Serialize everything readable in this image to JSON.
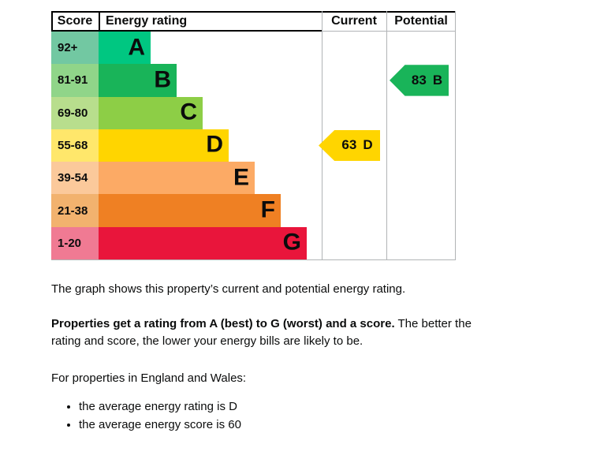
{
  "chart_data": {
    "type": "bar",
    "subtype": "epc-energy-rating-graph",
    "columns": [
      "Score",
      "Energy rating",
      "Current",
      "Potential"
    ],
    "bands": [
      {
        "score_range": "92+",
        "rating": "A",
        "color": "#00c781",
        "score_cell_color": "#72c8a2"
      },
      {
        "score_range": "81-91",
        "rating": "B",
        "color": "#19b459",
        "score_cell_color": "#90d589"
      },
      {
        "score_range": "69-80",
        "rating": "C",
        "color": "#8dce46",
        "score_cell_color": "#b8de8d"
      },
      {
        "score_range": "55-68",
        "rating": "D",
        "color": "#ffd500",
        "score_cell_color": "#ffe76b"
      },
      {
        "score_range": "39-54",
        "rating": "E",
        "color": "#fcaa65",
        "score_cell_color": "#fbc99b"
      },
      {
        "score_range": "21-38",
        "rating": "F",
        "color": "#ef8023",
        "score_cell_color": "#f2b26e"
      },
      {
        "score_range": "1-20",
        "rating": "G",
        "color": "#e9153b",
        "score_cell_color": "#f07a93"
      }
    ],
    "current": {
      "score": "63",
      "rating": "D",
      "band_index": 3,
      "arrow_color": "#ffd500"
    },
    "potential": {
      "score": "83",
      "rating": "B",
      "band_index": 1,
      "arrow_color": "#19b459"
    },
    "grid_color": "#b1b4b6",
    "header_border_color": "#000000"
  },
  "text": {
    "intro": "The graph shows this property’s current and potential energy rating.",
    "rating_bold": "Properties get a rating from A (best) to G (worst) and a score.",
    "rating_rest": " The better the rating and score, the lower your energy bills are likely to be.",
    "england_wales": "For properties in England and Wales:",
    "bullets": [
      "the average energy rating is D",
      "the average energy score is 60"
    ]
  }
}
